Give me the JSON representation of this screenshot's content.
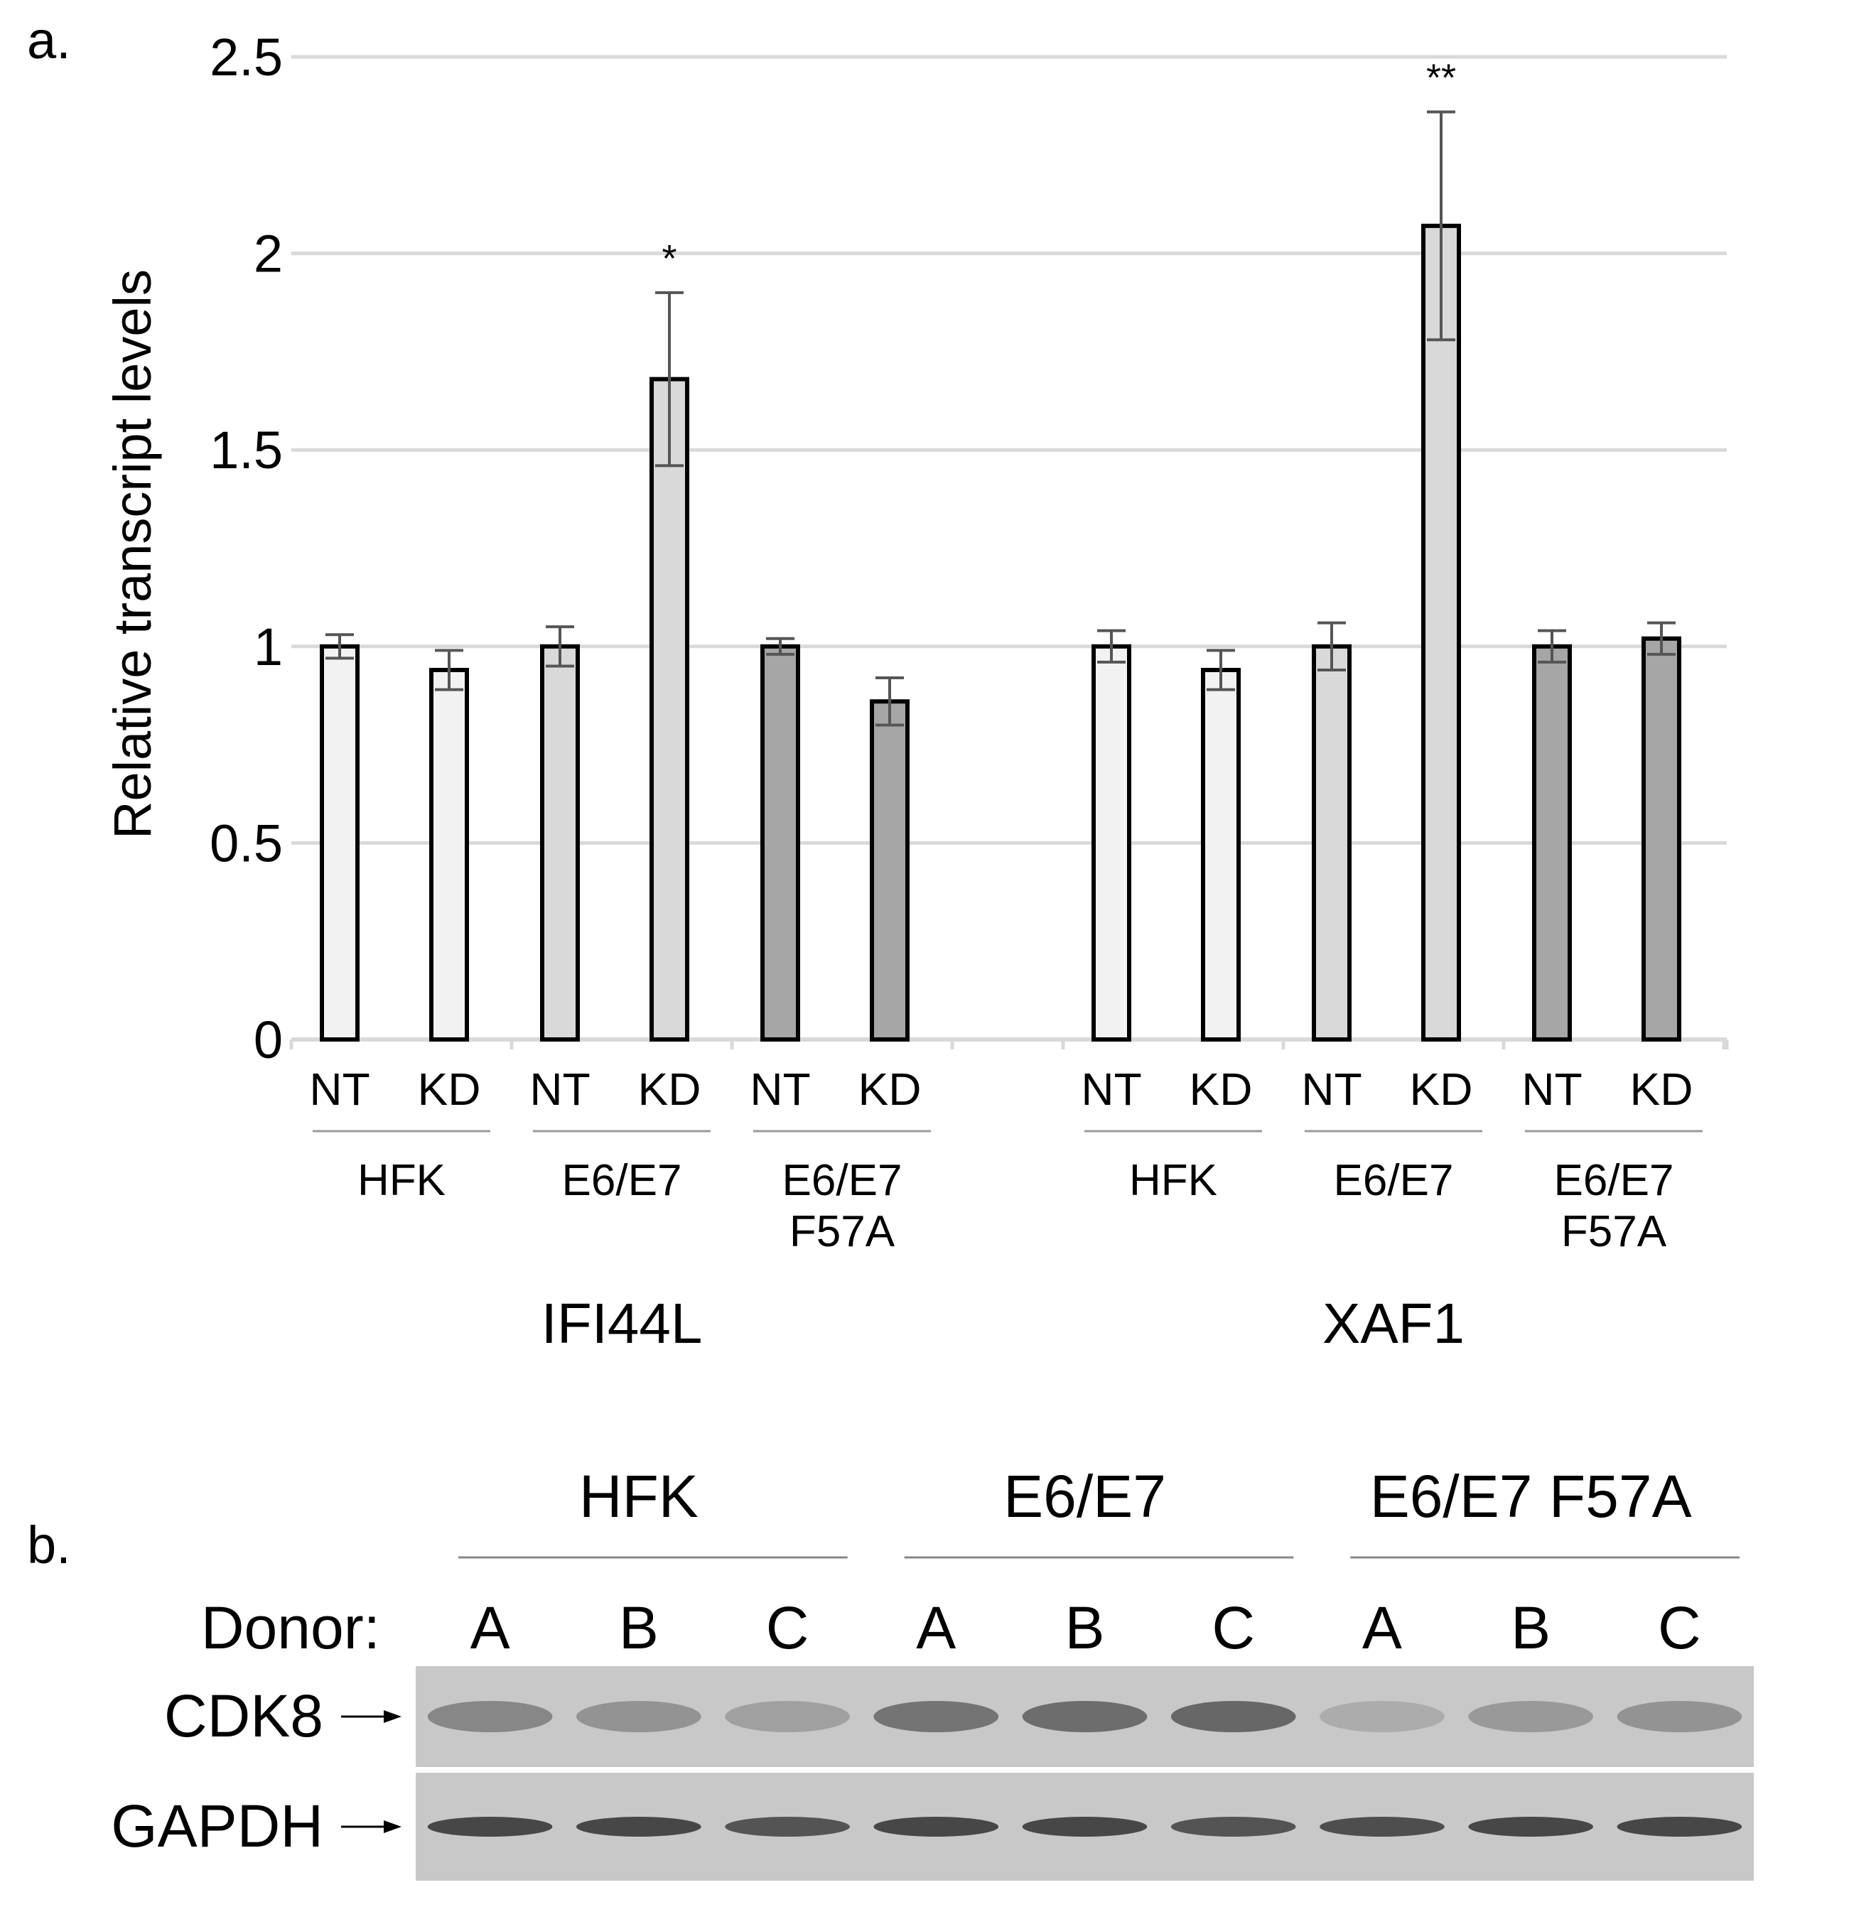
{
  "panel_labels": {
    "a": "a.",
    "b": "b."
  },
  "chart_data": {
    "type": "bar",
    "ylabel": "Relative transcript levels",
    "ylim": [
      0,
      2.5
    ],
    "yticks": [
      {
        "value": 0,
        "label": "0"
      },
      {
        "value": 0.5,
        "label": "0.5"
      },
      {
        "value": 1,
        "label": "1"
      },
      {
        "value": 1.5,
        "label": "1.5"
      },
      {
        "value": 2,
        "label": "2"
      },
      {
        "value": 2.5,
        "label": "2.5"
      }
    ],
    "grid": true,
    "colors": {
      "HFK": "#f2f2f2",
      "E6/E7": "#d9d9d9",
      "E6/E7 F57A": "#a6a6a6"
    },
    "genes": [
      {
        "name": "IFI44L",
        "groups": [
          {
            "label": [
              "HFK"
            ],
            "color_key": "HFK",
            "bars": [
              {
                "label": "NT",
                "value": 1.0,
                "error": 0.03,
                "sig": ""
              },
              {
                "label": "KD",
                "value": 0.94,
                "error": 0.05,
                "sig": ""
              }
            ]
          },
          {
            "label": [
              "E6/E7"
            ],
            "color_key": "E6/E7",
            "bars": [
              {
                "label": "NT",
                "value": 1.0,
                "error": 0.05,
                "sig": ""
              },
              {
                "label": "KD",
                "value": 1.68,
                "error": 0.22,
                "sig": "*"
              }
            ]
          },
          {
            "label": [
              "E6/E7",
              "F57A"
            ],
            "color_key": "E6/E7 F57A",
            "bars": [
              {
                "label": "NT",
                "value": 1.0,
                "error": 0.02,
                "sig": ""
              },
              {
                "label": "KD",
                "value": 0.86,
                "error": 0.06,
                "sig": ""
              }
            ]
          }
        ]
      },
      {
        "name": "XAF1",
        "groups": [
          {
            "label": [
              "HFK"
            ],
            "color_key": "HFK",
            "bars": [
              {
                "label": "NT",
                "value": 1.0,
                "error": 0.04,
                "sig": ""
              },
              {
                "label": "KD",
                "value": 0.94,
                "error": 0.05,
                "sig": ""
              }
            ]
          },
          {
            "label": [
              "E6/E7"
            ],
            "color_key": "E6/E7",
            "bars": [
              {
                "label": "NT",
                "value": 1.0,
                "error": 0.06,
                "sig": ""
              },
              {
                "label": "KD",
                "value": 2.07,
                "error": 0.29,
                "sig": "**"
              }
            ]
          },
          {
            "label": [
              "E6/E7",
              "F57A"
            ],
            "color_key": "E6/E7 F57A",
            "bars": [
              {
                "label": "NT",
                "value": 1.0,
                "error": 0.04,
                "sig": ""
              },
              {
                "label": "KD",
                "value": 1.02,
                "error": 0.04,
                "sig": ""
              }
            ]
          }
        ]
      }
    ]
  },
  "blot": {
    "groups": [
      "HFK",
      "E6/E7",
      "E6/E7 F57A"
    ],
    "donor_label": "Donor:",
    "donors": [
      "A",
      "B",
      "C",
      "A",
      "B",
      "C",
      "A",
      "B",
      "C"
    ],
    "rows": [
      {
        "label": "CDK8",
        "intensity": [
          0.45,
          0.35,
          0.25,
          0.6,
          0.65,
          0.7,
          0.15,
          0.3,
          0.35
        ]
      },
      {
        "label": "GAPDH",
        "intensity": [
          0.95,
          0.95,
          0.85,
          0.95,
          0.95,
          0.85,
          0.9,
          0.95,
          0.95
        ]
      }
    ]
  }
}
